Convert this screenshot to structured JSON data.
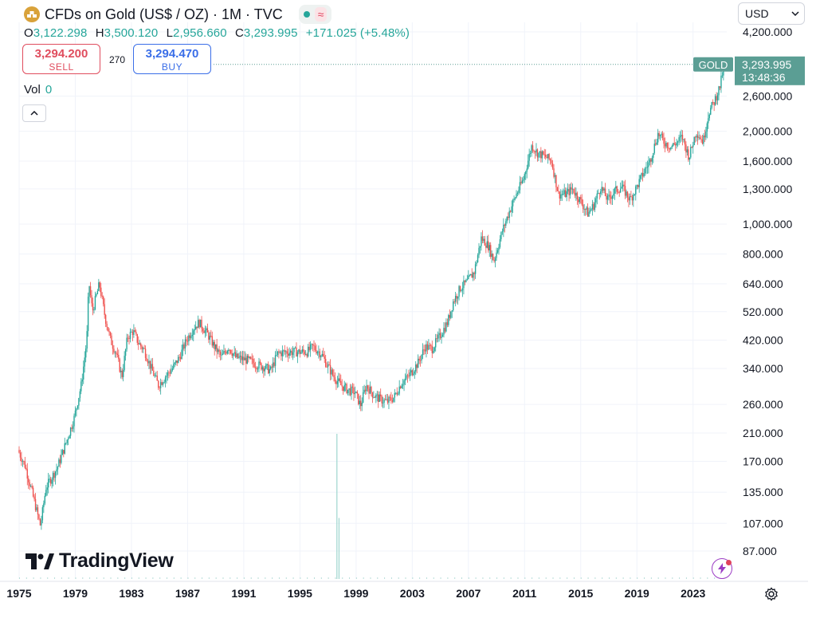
{
  "header": {
    "title": "CFDs on Gold (US$ / OZ) · 1M · TVC",
    "logo_icon": "gold-bars-icon",
    "status_icon": "market-open-dot-icon",
    "wave_icon": "wave-icon",
    "wave_glyph": "≈"
  },
  "ohlc": {
    "o_label": "O",
    "o": "3,122.298",
    "h_label": "H",
    "h": "3,500.120",
    "l_label": "L",
    "l": "2,956.660",
    "c_label": "C",
    "c": "3,293.995",
    "change": "+171.025 (+5.48%)"
  },
  "trade": {
    "sell_price": "3,294.200",
    "sell_label": "SELL",
    "spread": "270",
    "buy_price": "3,294.470",
    "buy_label": "BUY"
  },
  "volume": {
    "label": "Vol",
    "value": "0"
  },
  "collapse_icon": "chevron-up-icon",
  "currency": {
    "value": "USD",
    "icon": "chevron-down-icon"
  },
  "brand": {
    "name": "TradingView",
    "icon": "tradingview-logo-icon"
  },
  "tools": {
    "flash_icon": "lightning-icon",
    "settings_icon": "gear-icon"
  },
  "colors": {
    "up": "#26a69a",
    "down": "#ef5350",
    "accent": "#5b9e94",
    "text": "#131722",
    "grid": "#f0f3fa"
  },
  "chart_data": {
    "type": "candlestick",
    "scale": "log",
    "interval": "1M",
    "grid": true,
    "symbol_label": "GOLD",
    "last_price": "3,293.995",
    "countdown": "13:48:36",
    "last_value": 3293.995,
    "y_ticks": [
      {
        "label": "4,200.000",
        "value": 4200
      },
      {
        "label": "2,600.000",
        "value": 2600
      },
      {
        "label": "2,000.000",
        "value": 2000
      },
      {
        "label": "1,600.000",
        "value": 1600
      },
      {
        "label": "1,300.000",
        "value": 1300
      },
      {
        "label": "1,000.000",
        "value": 1000
      },
      {
        "label": "800.000",
        "value": 800
      },
      {
        "label": "640.000",
        "value": 640
      },
      {
        "label": "520.000",
        "value": 520
      },
      {
        "label": "420.000",
        "value": 420
      },
      {
        "label": "340.000",
        "value": 340
      },
      {
        "label": "260.000",
        "value": 260
      },
      {
        "label": "210.000",
        "value": 210
      },
      {
        "label": "170.000",
        "value": 170
      },
      {
        "label": "135.000",
        "value": 135
      },
      {
        "label": "107.000",
        "value": 107
      },
      {
        "label": "87.000",
        "value": 87
      }
    ],
    "x_ticks": [
      {
        "label": "1975",
        "value": 1975
      },
      {
        "label": "1979",
        "value": 1979
      },
      {
        "label": "1983",
        "value": 1983
      },
      {
        "label": "1987",
        "value": 1987
      },
      {
        "label": "1991",
        "value": 1991
      },
      {
        "label": "1995",
        "value": 1995
      },
      {
        "label": "1999",
        "value": 1999
      },
      {
        "label": "2003",
        "value": 2003
      },
      {
        "label": "2007",
        "value": 2007
      },
      {
        "label": "2011",
        "value": 2011
      },
      {
        "label": "2015",
        "value": 2015
      },
      {
        "label": "2019",
        "value": 2019
      },
      {
        "label": "2023",
        "value": 2023
      }
    ],
    "price_path": [
      [
        1975.0,
        185
      ],
      [
        1975.5,
        165
      ],
      [
        1976.0,
        135
      ],
      [
        1976.6,
        105
      ],
      [
        1977.0,
        140
      ],
      [
        1977.8,
        162
      ],
      [
        1978.5,
        200
      ],
      [
        1979.0,
        235
      ],
      [
        1979.5,
        300
      ],
      [
        1979.9,
        420
      ],
      [
        1980.05,
        650
      ],
      [
        1980.3,
        520
      ],
      [
        1980.8,
        640
      ],
      [
        1981.2,
        500
      ],
      [
        1981.6,
        420
      ],
      [
        1982.0,
        380
      ],
      [
        1982.4,
        320
      ],
      [
        1982.8,
        430
      ],
      [
        1983.2,
        450
      ],
      [
        1983.6,
        410
      ],
      [
        1984.0,
        390
      ],
      [
        1984.5,
        340
      ],
      [
        1985.0,
        300
      ],
      [
        1985.5,
        320
      ],
      [
        1986.0,
        340
      ],
      [
        1986.5,
        370
      ],
      [
        1987.0,
        420
      ],
      [
        1987.5,
        460
      ],
      [
        1987.9,
        480
      ],
      [
        1988.5,
        440
      ],
      [
        1989.0,
        400
      ],
      [
        1989.5,
        370
      ],
      [
        1990.0,
        400
      ],
      [
        1990.5,
        370
      ],
      [
        1991.0,
        365
      ],
      [
        1991.5,
        360
      ],
      [
        1992.0,
        350
      ],
      [
        1992.5,
        345
      ],
      [
        1993.0,
        335
      ],
      [
        1993.5,
        380
      ],
      [
        1994.0,
        385
      ],
      [
        1994.5,
        385
      ],
      [
        1995.0,
        385
      ],
      [
        1995.6,
        385
      ],
      [
        1996.0,
        400
      ],
      [
        1996.6,
        380
      ],
      [
        1997.0,
        350
      ],
      [
        1997.5,
        320
      ],
      [
        1998.0,
        300
      ],
      [
        1998.5,
        290
      ],
      [
        1999.0,
        285
      ],
      [
        1999.4,
        258
      ],
      [
        1999.8,
        300
      ],
      [
        2000.3,
        280
      ],
      [
        2000.8,
        270
      ],
      [
        2001.3,
        265
      ],
      [
        2001.8,
        275
      ],
      [
        2002.3,
        305
      ],
      [
        2002.8,
        320
      ],
      [
        2003.5,
        355
      ],
      [
        2004.0,
        400
      ],
      [
        2004.5,
        395
      ],
      [
        2005.0,
        430
      ],
      [
        2005.6,
        480
      ],
      [
        2006.0,
        560
      ],
      [
        2006.5,
        620
      ],
      [
        2007.0,
        650
      ],
      [
        2007.5,
        700
      ],
      [
        2008.0,
        900
      ],
      [
        2008.5,
        850
      ],
      [
        2008.9,
        760
      ],
      [
        2009.5,
        950
      ],
      [
        2010.0,
        1100
      ],
      [
        2010.5,
        1250
      ],
      [
        2011.0,
        1400
      ],
      [
        2011.6,
        1800
      ],
      [
        2012.0,
        1700
      ],
      [
        2012.6,
        1650
      ],
      [
        2013.0,
        1600
      ],
      [
        2013.5,
        1250
      ],
      [
        2014.0,
        1250
      ],
      [
        2014.5,
        1300
      ],
      [
        2015.0,
        1200
      ],
      [
        2015.6,
        1080
      ],
      [
        2016.0,
        1150
      ],
      [
        2016.5,
        1320
      ],
      [
        2017.0,
        1200
      ],
      [
        2017.5,
        1280
      ],
      [
        2018.0,
        1320
      ],
      [
        2018.6,
        1200
      ],
      [
        2019.0,
        1300
      ],
      [
        2019.6,
        1480
      ],
      [
        2020.0,
        1600
      ],
      [
        2020.6,
        1970
      ],
      [
        2021.0,
        1850
      ],
      [
        2021.5,
        1780
      ],
      [
        2022.0,
        1850
      ],
      [
        2022.3,
        1920
      ],
      [
        2022.8,
        1650
      ],
      [
        2023.3,
        2000
      ],
      [
        2023.8,
        1850
      ],
      [
        2024.2,
        2300
      ],
      [
        2024.6,
        2500
      ],
      [
        2025.0,
        2800
      ],
      [
        2025.3,
        3293.995
      ]
    ],
    "volume_bars": [
      {
        "x": 1997.6,
        "value": 1.0
      },
      {
        "x": 1997.75,
        "value": 0.42
      }
    ]
  }
}
